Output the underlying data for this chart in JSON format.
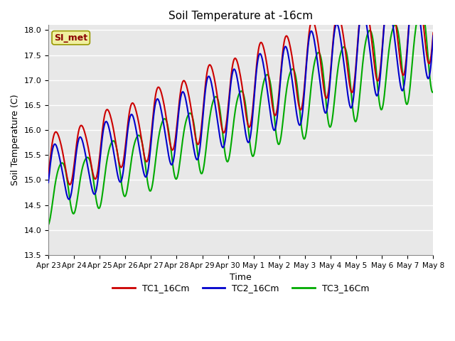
{
  "title": "Soil Temperature at -16cm",
  "xlabel": "Time",
  "ylabel": "Soil Temperature (C)",
  "ylim": [
    13.5,
    18.1
  ],
  "xlim": [
    0,
    15
  ],
  "background_color": "#ffffff",
  "plot_bg_color": "#e8e8e8",
  "grid_color": "#ffffff",
  "watermark": "SI_met",
  "tick_labels": [
    "Apr 23",
    "Apr 24",
    "Apr 25",
    "Apr 26",
    "Apr 27",
    "Apr 28",
    "Apr 29",
    "Apr 30",
    "May 1",
    "May 2",
    "May 3",
    "May 4",
    "May 5",
    "May 6",
    "May 7",
    "May 8"
  ],
  "yticks": [
    13.5,
    14.0,
    14.5,
    15.0,
    15.5,
    16.0,
    16.5,
    17.0,
    17.5,
    18.0
  ],
  "TC1_color": "#cc0000",
  "TC2_color": "#0000cc",
  "TC3_color": "#00aa00",
  "line_width": 1.5
}
